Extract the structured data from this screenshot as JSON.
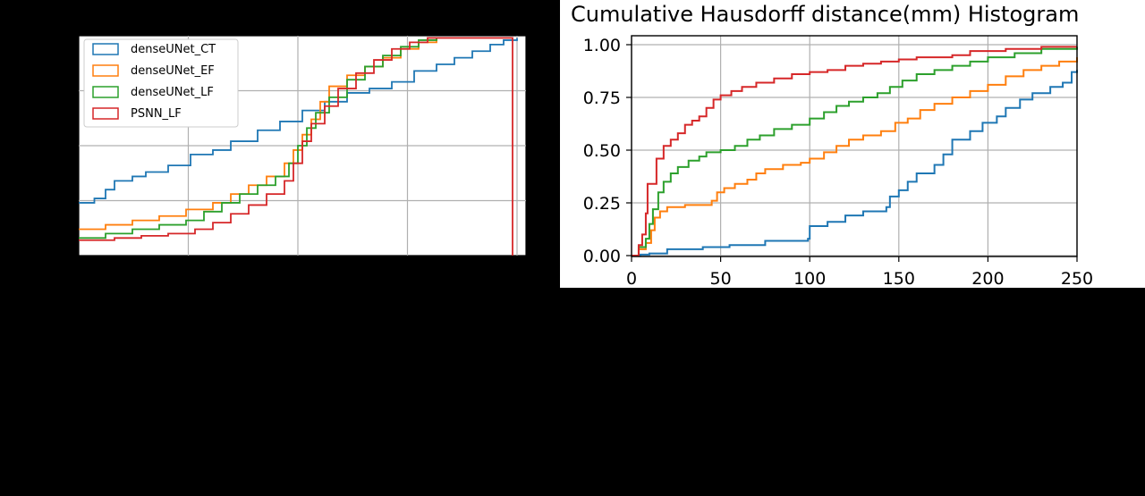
{
  "chart_data": [
    {
      "type": "line",
      "title": "",
      "xlabel": "",
      "ylabel": "",
      "xlim": [
        0,
        1
      ],
      "ylim": [
        0,
        1
      ],
      "grid": true,
      "legend_position": "top-left",
      "series": [
        {
          "name": "denseUNet_CT",
          "color": "#1f77b4",
          "points": [
            [
              0.0,
              0.24
            ],
            [
              0.035,
              0.26
            ],
            [
              0.06,
              0.3
            ],
            [
              0.08,
              0.34
            ],
            [
              0.12,
              0.36
            ],
            [
              0.15,
              0.38
            ],
            [
              0.2,
              0.41
            ],
            [
              0.25,
              0.46
            ],
            [
              0.3,
              0.48
            ],
            [
              0.34,
              0.52
            ],
            [
              0.4,
              0.57
            ],
            [
              0.45,
              0.61
            ],
            [
              0.5,
              0.66
            ],
            [
              0.55,
              0.7
            ],
            [
              0.6,
              0.74
            ],
            [
              0.65,
              0.76
            ],
            [
              0.7,
              0.79
            ],
            [
              0.75,
              0.84
            ],
            [
              0.8,
              0.87
            ],
            [
              0.84,
              0.9
            ],
            [
              0.88,
              0.93
            ],
            [
              0.92,
              0.96
            ],
            [
              0.95,
              0.98
            ],
            [
              0.98,
              0.99
            ]
          ]
        },
        {
          "name": "denseUNet_EF",
          "color": "#ff7f0e",
          "points": [
            [
              0.0,
              0.12
            ],
            [
              0.06,
              0.14
            ],
            [
              0.12,
              0.16
            ],
            [
              0.18,
              0.18
            ],
            [
              0.24,
              0.21
            ],
            [
              0.3,
              0.24
            ],
            [
              0.34,
              0.28
            ],
            [
              0.38,
              0.32
            ],
            [
              0.42,
              0.36
            ],
            [
              0.46,
              0.42
            ],
            [
              0.48,
              0.48
            ],
            [
              0.5,
              0.55
            ],
            [
              0.52,
              0.62
            ],
            [
              0.54,
              0.7
            ],
            [
              0.56,
              0.77
            ],
            [
              0.6,
              0.82
            ],
            [
              0.64,
              0.86
            ],
            [
              0.68,
              0.9
            ],
            [
              0.72,
              0.94
            ],
            [
              0.76,
              0.97
            ],
            [
              0.8,
              0.99
            ]
          ]
        },
        {
          "name": "denseUNet_LF",
          "color": "#2ca02c",
          "points": [
            [
              0.0,
              0.08
            ],
            [
              0.06,
              0.1
            ],
            [
              0.12,
              0.12
            ],
            [
              0.18,
              0.14
            ],
            [
              0.24,
              0.16
            ],
            [
              0.28,
              0.2
            ],
            [
              0.32,
              0.24
            ],
            [
              0.36,
              0.28
            ],
            [
              0.4,
              0.32
            ],
            [
              0.44,
              0.36
            ],
            [
              0.47,
              0.42
            ],
            [
              0.49,
              0.5
            ],
            [
              0.51,
              0.58
            ],
            [
              0.53,
              0.65
            ],
            [
              0.56,
              0.72
            ],
            [
              0.6,
              0.8
            ],
            [
              0.64,
              0.86
            ],
            [
              0.68,
              0.91
            ],
            [
              0.72,
              0.95
            ],
            [
              0.76,
              0.98
            ],
            [
              0.8,
              0.99
            ]
          ]
        },
        {
          "name": "PSNN_LF",
          "color": "#d62728",
          "points": [
            [
              0.0,
              0.07
            ],
            [
              0.08,
              0.08
            ],
            [
              0.14,
              0.09
            ],
            [
              0.2,
              0.1
            ],
            [
              0.26,
              0.12
            ],
            [
              0.3,
              0.15
            ],
            [
              0.34,
              0.19
            ],
            [
              0.38,
              0.23
            ],
            [
              0.42,
              0.28
            ],
            [
              0.46,
              0.34
            ],
            [
              0.48,
              0.42
            ],
            [
              0.5,
              0.52
            ],
            [
              0.52,
              0.6
            ],
            [
              0.55,
              0.68
            ],
            [
              0.58,
              0.76
            ],
            [
              0.62,
              0.83
            ],
            [
              0.66,
              0.89
            ],
            [
              0.7,
              0.94
            ],
            [
              0.74,
              0.97
            ],
            [
              0.78,
              0.99
            ],
            [
              0.96,
              0.99
            ],
            [
              0.97,
              0.0
            ]
          ]
        }
      ]
    },
    {
      "type": "line",
      "title": "Cumulative Hausdorff distance(mm) Histogram",
      "xlabel": "",
      "ylabel": "",
      "xlim": [
        0,
        250
      ],
      "ylim": [
        0,
        1.0
      ],
      "xticks": [
        "0",
        "50",
        "100",
        "150",
        "200",
        "250"
      ],
      "yticks": [
        "0.00",
        "0.25",
        "0.50",
        "0.75",
        "1.00"
      ],
      "grid": true,
      "series": [
        {
          "name": "denseUNet_CT",
          "color": "#1f77b4",
          "points": [
            [
              0,
              0
            ],
            [
              5,
              0.005
            ],
            [
              10,
              0.01
            ],
            [
              20,
              0.03
            ],
            [
              40,
              0.04
            ],
            [
              55,
              0.05
            ],
            [
              75,
              0.07
            ],
            [
              99,
              0.08
            ],
            [
              100,
              0.14
            ],
            [
              110,
              0.16
            ],
            [
              120,
              0.19
            ],
            [
              130,
              0.21
            ],
            [
              143,
              0.23
            ],
            [
              145,
              0.28
            ],
            [
              150,
              0.31
            ],
            [
              155,
              0.35
            ],
            [
              160,
              0.39
            ],
            [
              170,
              0.43
            ],
            [
              175,
              0.48
            ],
            [
              180,
              0.55
            ],
            [
              190,
              0.59
            ],
            [
              197,
              0.63
            ],
            [
              205,
              0.66
            ],
            [
              210,
              0.7
            ],
            [
              218,
              0.74
            ],
            [
              225,
              0.77
            ],
            [
              235,
              0.8
            ],
            [
              242,
              0.82
            ],
            [
              247,
              0.87
            ],
            [
              250,
              0.88
            ]
          ]
        },
        {
          "name": "denseUNet_EF",
          "color": "#ff7f0e",
          "points": [
            [
              0,
              0
            ],
            [
              4,
              0.03
            ],
            [
              8,
              0.06
            ],
            [
              11,
              0.12
            ],
            [
              13,
              0.18
            ],
            [
              16,
              0.21
            ],
            [
              20,
              0.23
            ],
            [
              30,
              0.24
            ],
            [
              45,
              0.26
            ],
            [
              48,
              0.3
            ],
            [
              52,
              0.32
            ],
            [
              58,
              0.34
            ],
            [
              65,
              0.36
            ],
            [
              70,
              0.39
            ],
            [
              75,
              0.41
            ],
            [
              85,
              0.43
            ],
            [
              95,
              0.44
            ],
            [
              100,
              0.46
            ],
            [
              108,
              0.49
            ],
            [
              115,
              0.52
            ],
            [
              122,
              0.55
            ],
            [
              130,
              0.57
            ],
            [
              140,
              0.59
            ],
            [
              148,
              0.63
            ],
            [
              155,
              0.65
            ],
            [
              162,
              0.69
            ],
            [
              170,
              0.72
            ],
            [
              180,
              0.75
            ],
            [
              190,
              0.78
            ],
            [
              200,
              0.81
            ],
            [
              210,
              0.85
            ],
            [
              220,
              0.88
            ],
            [
              230,
              0.9
            ],
            [
              240,
              0.92
            ],
            [
              250,
              0.94
            ]
          ]
        },
        {
          "name": "denseUNet_LF",
          "color": "#2ca02c",
          "points": [
            [
              0,
              0
            ],
            [
              4,
              0.04
            ],
            [
              8,
              0.08
            ],
            [
              10,
              0.15
            ],
            [
              12,
              0.22
            ],
            [
              15,
              0.3
            ],
            [
              18,
              0.35
            ],
            [
              22,
              0.39
            ],
            [
              26,
              0.42
            ],
            [
              32,
              0.45
            ],
            [
              38,
              0.47
            ],
            [
              42,
              0.49
            ],
            [
              50,
              0.5
            ],
            [
              58,
              0.52
            ],
            [
              65,
              0.55
            ],
            [
              72,
              0.57
            ],
            [
              80,
              0.6
            ],
            [
              90,
              0.62
            ],
            [
              100,
              0.65
            ],
            [
              108,
              0.68
            ],
            [
              115,
              0.71
            ],
            [
              122,
              0.73
            ],
            [
              130,
              0.75
            ],
            [
              138,
              0.77
            ],
            [
              145,
              0.8
            ],
            [
              152,
              0.83
            ],
            [
              160,
              0.86
            ],
            [
              170,
              0.88
            ],
            [
              180,
              0.9
            ],
            [
              190,
              0.92
            ],
            [
              200,
              0.94
            ],
            [
              215,
              0.96
            ],
            [
              230,
              0.98
            ],
            [
              250,
              0.99
            ]
          ]
        },
        {
          "name": "PSNN_LF",
          "color": "#d62728",
          "points": [
            [
              0,
              0
            ],
            [
              4,
              0.05
            ],
            [
              6,
              0.1
            ],
            [
              8,
              0.2
            ],
            [
              9,
              0.34
            ],
            [
              14,
              0.46
            ],
            [
              18,
              0.52
            ],
            [
              22,
              0.55
            ],
            [
              26,
              0.58
            ],
            [
              30,
              0.62
            ],
            [
              34,
              0.64
            ],
            [
              38,
              0.66
            ],
            [
              42,
              0.7
            ],
            [
              46,
              0.74
            ],
            [
              50,
              0.76
            ],
            [
              56,
              0.78
            ],
            [
              62,
              0.8
            ],
            [
              70,
              0.82
            ],
            [
              80,
              0.84
            ],
            [
              90,
              0.86
            ],
            [
              100,
              0.87
            ],
            [
              110,
              0.88
            ],
            [
              120,
              0.9
            ],
            [
              130,
              0.91
            ],
            [
              140,
              0.92
            ],
            [
              150,
              0.93
            ],
            [
              160,
              0.94
            ],
            [
              180,
              0.95
            ],
            [
              190,
              0.97
            ],
            [
              210,
              0.98
            ],
            [
              230,
              0.99
            ],
            [
              250,
              0.99
            ]
          ]
        }
      ]
    }
  ]
}
